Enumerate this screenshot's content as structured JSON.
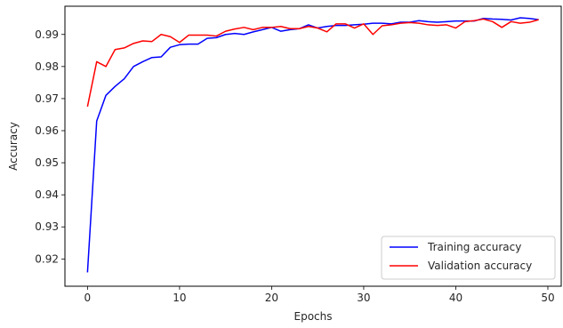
{
  "chart_data": {
    "type": "line",
    "title": "",
    "xlabel": "Epochs",
    "ylabel": "Accuracy",
    "xlim": [
      -2.45,
      51.45
    ],
    "ylim": [
      0.9115,
      0.9988
    ],
    "xticks": [
      0,
      10,
      20,
      30,
      40,
      50
    ],
    "yticks": [
      0.92,
      0.93,
      0.94,
      0.95,
      0.96,
      0.97,
      0.98,
      0.99
    ],
    "grid": false,
    "legend": "bottom-right",
    "x": [
      0,
      1,
      2,
      3,
      4,
      5,
      6,
      7,
      8,
      9,
      10,
      11,
      12,
      13,
      14,
      15,
      16,
      17,
      18,
      19,
      20,
      21,
      22,
      23,
      24,
      25,
      26,
      27,
      28,
      29,
      30,
      31,
      32,
      33,
      34,
      35,
      36,
      37,
      38,
      39,
      40,
      41,
      42,
      43,
      44,
      45,
      46,
      47,
      48,
      49
    ],
    "series": [
      {
        "name": "Training accuracy",
        "color": "#0000ff",
        "values": [
          0.9158,
          0.963,
          0.971,
          0.9738,
          0.9762,
          0.98,
          0.9815,
          0.9828,
          0.983,
          0.986,
          0.9868,
          0.987,
          0.987,
          0.9888,
          0.989,
          0.99,
          0.9903,
          0.99,
          0.9908,
          0.9915,
          0.9922,
          0.991,
          0.9915,
          0.9918,
          0.993,
          0.992,
          0.9925,
          0.9928,
          0.9928,
          0.993,
          0.9932,
          0.9935,
          0.9935,
          0.9933,
          0.9938,
          0.9938,
          0.9943,
          0.994,
          0.9938,
          0.994,
          0.9942,
          0.9942,
          0.9942,
          0.995,
          0.9948,
          0.9947,
          0.9945,
          0.9952,
          0.995,
          0.9946
        ]
      },
      {
        "name": "Validation accuracy",
        "color": "#ff0000",
        "values": [
          0.9675,
          0.9815,
          0.98,
          0.9853,
          0.9858,
          0.9872,
          0.988,
          0.9878,
          0.99,
          0.9893,
          0.9875,
          0.9898,
          0.9898,
          0.9898,
          0.9895,
          0.991,
          0.9917,
          0.9922,
          0.9915,
          0.9922,
          0.9922,
          0.9925,
          0.9918,
          0.9918,
          0.9925,
          0.992,
          0.9908,
          0.9933,
          0.9933,
          0.992,
          0.9933,
          0.99,
          0.9927,
          0.993,
          0.9935,
          0.9937,
          0.9935,
          0.993,
          0.9928,
          0.993,
          0.992,
          0.994,
          0.9943,
          0.9948,
          0.994,
          0.9922,
          0.994,
          0.9935,
          0.9938,
          0.9946
        ]
      }
    ]
  }
}
